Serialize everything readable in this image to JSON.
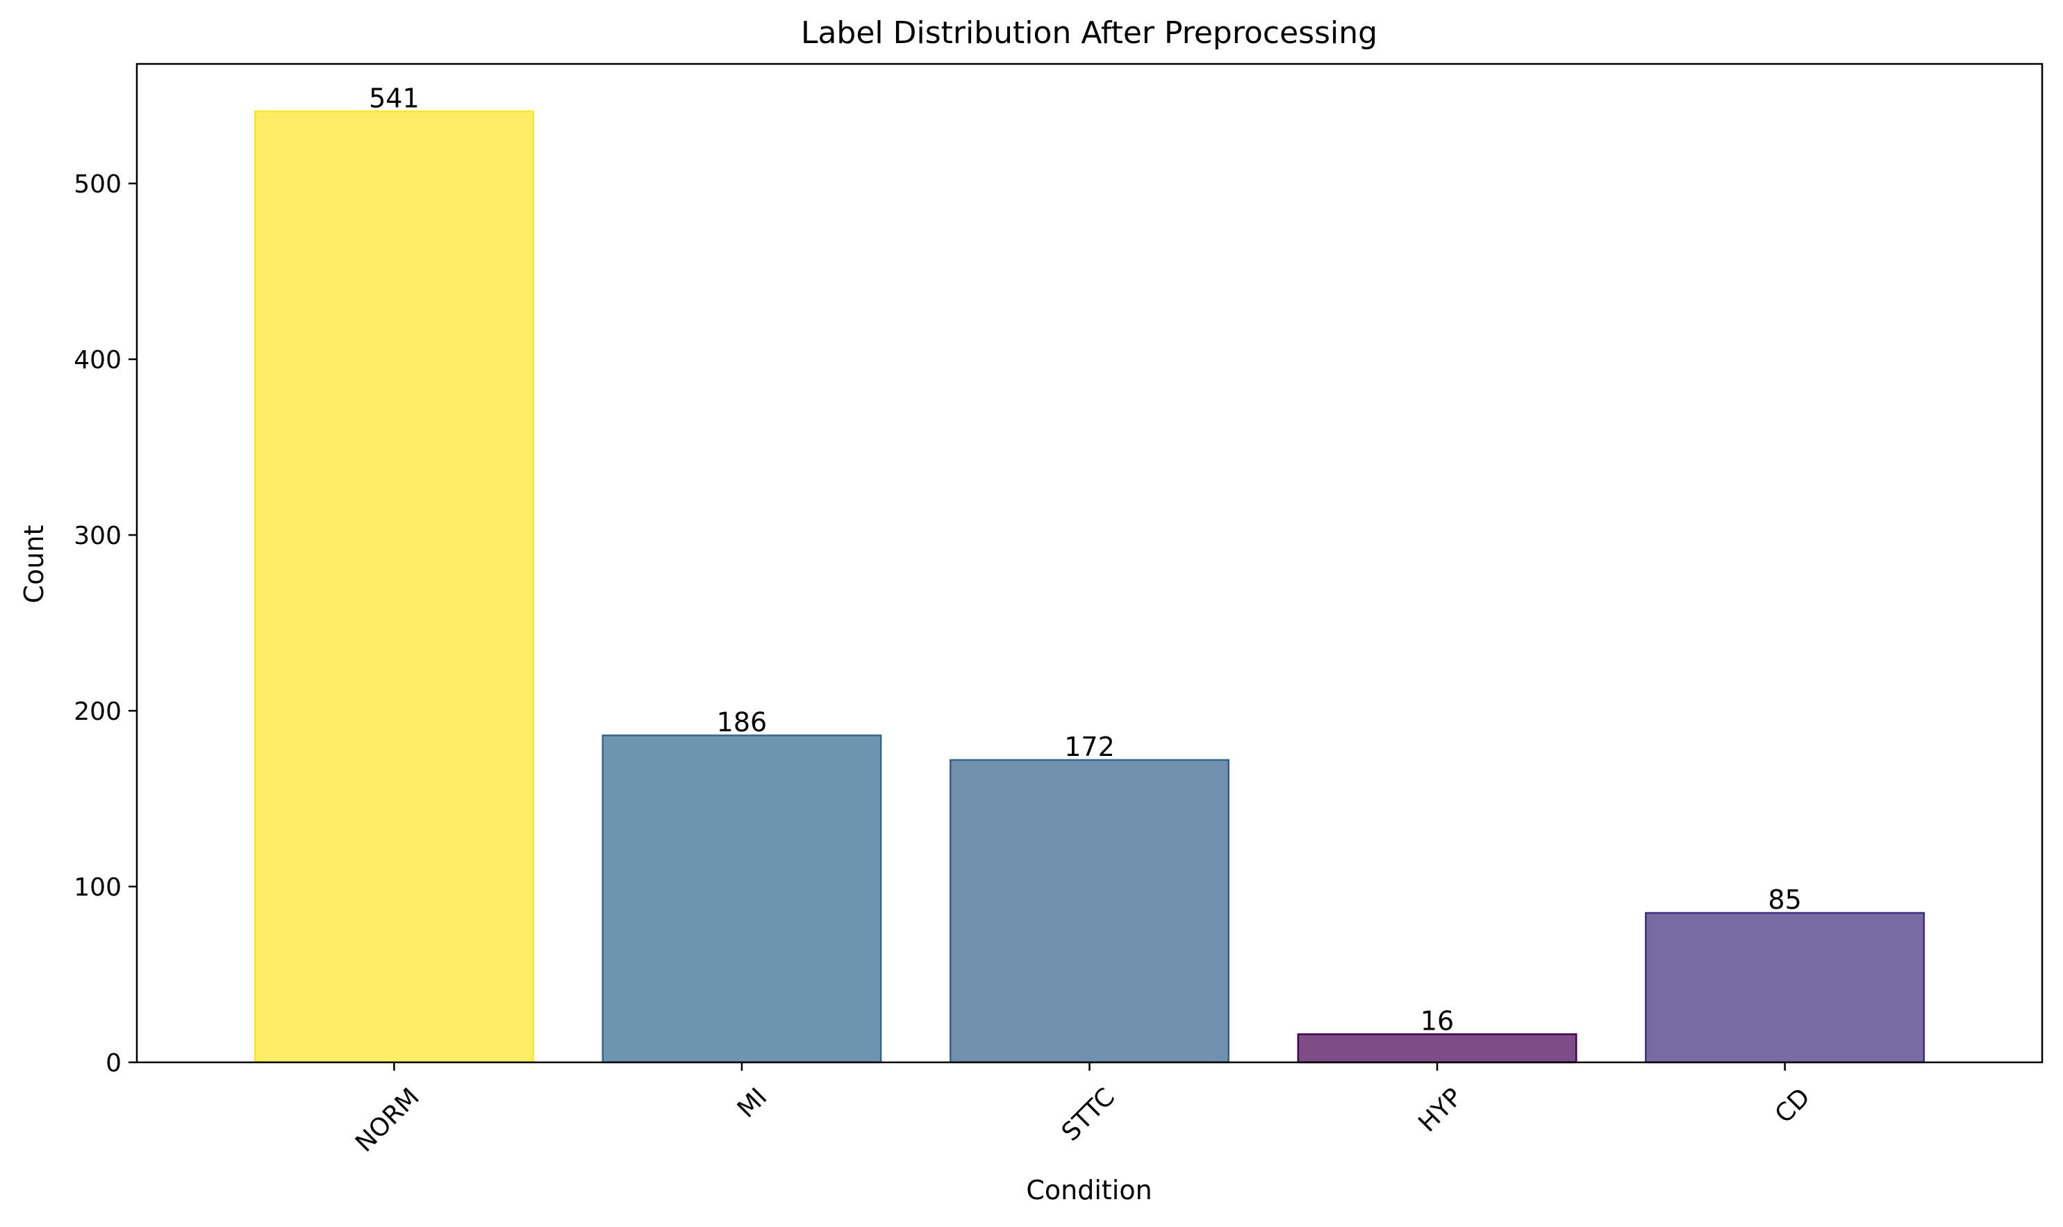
{
  "chart_data": {
    "type": "bar",
    "title": "Label Distribution After Preprocessing",
    "xlabel": "Condition",
    "ylabel": "Count",
    "categories": [
      "NORM",
      "MI",
      "STTC",
      "HYP",
      "CD"
    ],
    "values": [
      541,
      186,
      172,
      16,
      85
    ],
    "data_labels": [
      "541",
      "186",
      "172",
      "16",
      "85"
    ],
    "bar_colors": [
      "#fde725",
      "#31688e",
      "#35618a",
      "#440154",
      "#3e2c7c"
    ],
    "ylim": [
      0,
      568
    ],
    "yticks": [
      0,
      100,
      200,
      300,
      400,
      500
    ],
    "ytick_labels": [
      "0",
      "100",
      "200",
      "300",
      "400",
      "500"
    ],
    "xtick_rotation_deg": 45,
    "grid": false,
    "legend": "none"
  }
}
